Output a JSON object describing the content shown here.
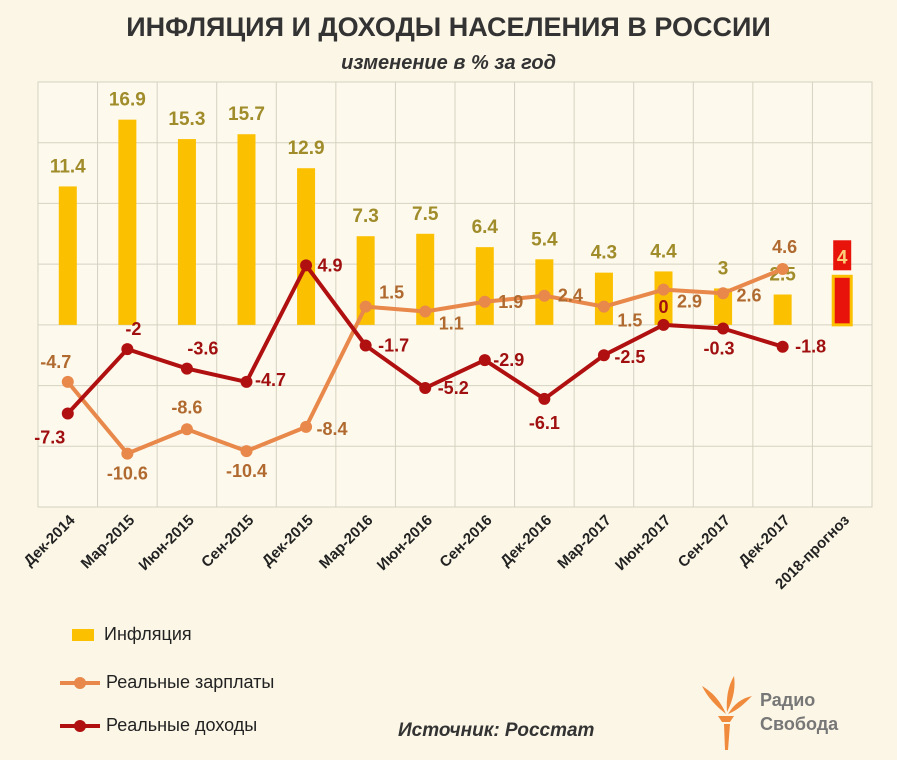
{
  "chart_data": {
    "type": "bar+line",
    "title": "ИНФЛЯЦИЯ И ДОХОДЫ НАСЕЛЕНИЯ В РОССИИ",
    "subtitle": "изменение в % за год",
    "categories": [
      "Дек-2014",
      "Мар-2015",
      "Июн-2015",
      "Сен-2015",
      "Дек-2015",
      "Мар-2016",
      "Июн-2016",
      "Сен-2016",
      "Дек-2016",
      "Мар-2017",
      "Июн-2017",
      "Сен-2017",
      "Дек-2017",
      "2018-прогноз"
    ],
    "ylim": [
      -15,
      20
    ],
    "grid": true,
    "legend": "bottom-left",
    "series": [
      {
        "name": "Инфляция",
        "type": "bar",
        "color": "#fbc100",
        "values": [
          11.4,
          16.9,
          15.3,
          15.7,
          12.9,
          7.3,
          7.5,
          6.4,
          5.4,
          4.3,
          4.4,
          3,
          2.5,
          4
        ],
        "forecast_color": "#e8140c"
      },
      {
        "name": "Реальные зарплаты",
        "type": "line",
        "color": "#e8884a",
        "values": [
          -4.7,
          -10.6,
          -8.6,
          -10.4,
          -8.4,
          1.5,
          1.1,
          1.9,
          2.4,
          1.5,
          2.9,
          2.6,
          4.6,
          null
        ]
      },
      {
        "name": "Реальные доходы",
        "type": "line",
        "color": "#b01010",
        "values": [
          -7.3,
          -2,
          -3.6,
          -4.7,
          4.9,
          -1.7,
          -5.2,
          -2.9,
          -6.1,
          -2.5,
          0,
          -0.3,
          -1.8,
          null
        ]
      }
    ]
  },
  "source": "Источник: Росстат",
  "logo": {
    "line1": "Радио",
    "line2": "Свобода"
  }
}
